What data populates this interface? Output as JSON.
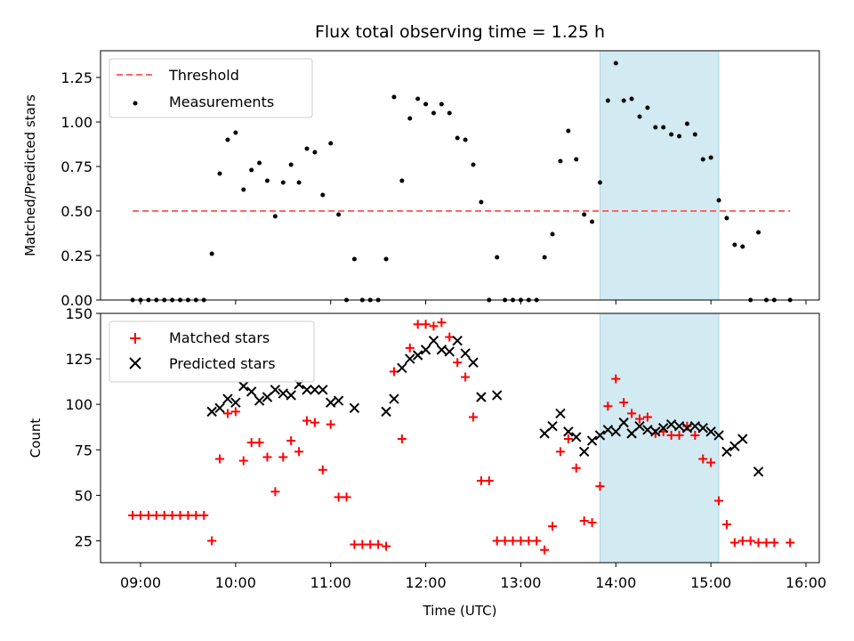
{
  "chart_data": [
    {
      "type": "scatter",
      "title": "Flux total observing time = 1.25 h",
      "xlabel": "",
      "ylabel": "Matched/Predicted stars",
      "ylim": [
        0,
        1.4
      ],
      "yticks": [
        "0.00",
        "0.25",
        "0.50",
        "0.75",
        "1.00",
        "1.25"
      ],
      "shaded_span": {
        "start": "13:50",
        "end": "15:05",
        "color": "#add8e6"
      },
      "threshold": {
        "name": "Threshold",
        "value": 0.5,
        "x_start": "08:55",
        "x_end": "15:50",
        "color": "#ff6666"
      },
      "legend": {
        "position": "top-left",
        "entries": [
          "Threshold",
          "Measurements"
        ]
      },
      "series": [
        {
          "name": "Measurements",
          "marker": "dot",
          "color": "#000000",
          "points": [
            [
              "08:55",
              0
            ],
            [
              "09:00",
              0
            ],
            [
              "09:05",
              0
            ],
            [
              "09:10",
              0
            ],
            [
              "09:15",
              0
            ],
            [
              "09:20",
              0
            ],
            [
              "09:25",
              0
            ],
            [
              "09:30",
              0
            ],
            [
              "09:35",
              0
            ],
            [
              "09:40",
              0
            ],
            [
              "09:45",
              0.26
            ],
            [
              "09:50",
              0.71
            ],
            [
              "09:55",
              0.9
            ],
            [
              "10:00",
              0.94
            ],
            [
              "10:05",
              0.62
            ],
            [
              "10:10",
              0.73
            ],
            [
              "10:15",
              0.77
            ],
            [
              "10:20",
              0.67
            ],
            [
              "10:25",
              0.47
            ],
            [
              "10:30",
              0.66
            ],
            [
              "10:35",
              0.76
            ],
            [
              "10:40",
              0.66
            ],
            [
              "10:45",
              0.85
            ],
            [
              "10:50",
              0.83
            ],
            [
              "10:55",
              0.59
            ],
            [
              "11:00",
              0.88
            ],
            [
              "11:05",
              0.48
            ],
            [
              "11:10",
              0
            ],
            [
              "11:15",
              0.23
            ],
            [
              "11:20",
              0
            ],
            [
              "11:25",
              0
            ],
            [
              "11:30",
              0
            ],
            [
              "11:35",
              0.23
            ],
            [
              "11:40",
              1.14
            ],
            [
              "11:45",
              0.67
            ],
            [
              "11:50",
              1.02
            ],
            [
              "11:55",
              1.13
            ],
            [
              "12:00",
              1.1
            ],
            [
              "12:05",
              1.05
            ],
            [
              "12:10",
              1.1
            ],
            [
              "12:15",
              1.05
            ],
            [
              "12:20",
              0.91
            ],
            [
              "12:25",
              0.9
            ],
            [
              "12:30",
              0.76
            ],
            [
              "12:35",
              0.55
            ],
            [
              "12:40",
              0
            ],
            [
              "12:45",
              0.24
            ],
            [
              "12:50",
              0
            ],
            [
              "12:55",
              0
            ],
            [
              "13:00",
              0
            ],
            [
              "13:05",
              0
            ],
            [
              "13:10",
              0
            ],
            [
              "13:15",
              0.24
            ],
            [
              "13:20",
              0.37
            ],
            [
              "13:25",
              0.78
            ],
            [
              "13:30",
              0.95
            ],
            [
              "13:35",
              0.79
            ],
            [
              "13:40",
              0.48
            ],
            [
              "13:45",
              0.44
            ],
            [
              "13:50",
              0.66
            ],
            [
              "13:55",
              1.12
            ],
            [
              "14:00",
              1.33
            ],
            [
              "14:05",
              1.12
            ],
            [
              "14:10",
              1.13
            ],
            [
              "14:15",
              1.03
            ],
            [
              "14:20",
              1.08
            ],
            [
              "14:25",
              0.97
            ],
            [
              "14:30",
              0.97
            ],
            [
              "14:35",
              0.93
            ],
            [
              "14:40",
              0.92
            ],
            [
              "14:45",
              0.99
            ],
            [
              "14:50",
              0.93
            ],
            [
              "14:55",
              0.79
            ],
            [
              "15:00",
              0.8
            ],
            [
              "15:05",
              0.56
            ],
            [
              "15:10",
              0.46
            ],
            [
              "15:15",
              0.31
            ],
            [
              "15:20",
              0.3
            ],
            [
              "15:25",
              0
            ],
            [
              "15:30",
              0.38
            ],
            [
              "15:35",
              0
            ],
            [
              "15:40",
              0
            ],
            [
              "15:50",
              0
            ]
          ]
        }
      ]
    },
    {
      "type": "scatter",
      "title": "",
      "xlabel": "Time (UTC)",
      "ylabel": "Count",
      "ylim": [
        13,
        150
      ],
      "yticks": [
        "25",
        "50",
        "75",
        "100",
        "125",
        "150"
      ],
      "xticks": [
        "09:00",
        "10:00",
        "11:00",
        "12:00",
        "13:00",
        "14:00",
        "15:00",
        "16:00"
      ],
      "shaded_span": {
        "start": "13:50",
        "end": "15:05",
        "color": "#add8e6"
      },
      "legend": {
        "position": "top-left",
        "entries": [
          "Matched stars",
          "Predicted stars"
        ]
      },
      "series": [
        {
          "name": "Matched stars",
          "marker": "plus",
          "color": "#ff0000",
          "points": [
            [
              "08:55",
              39
            ],
            [
              "09:00",
              39
            ],
            [
              "09:05",
              39
            ],
            [
              "09:10",
              39
            ],
            [
              "09:15",
              39
            ],
            [
              "09:20",
              39
            ],
            [
              "09:25",
              39
            ],
            [
              "09:30",
              39
            ],
            [
              "09:35",
              39
            ],
            [
              "09:40",
              39
            ],
            [
              "09:45",
              25
            ],
            [
              "09:50",
              70
            ],
            [
              "09:55",
              95
            ],
            [
              "10:00",
              96
            ],
            [
              "10:05",
              69
            ],
            [
              "10:10",
              79
            ],
            [
              "10:15",
              79
            ],
            [
              "10:20",
              71
            ],
            [
              "10:25",
              52
            ],
            [
              "10:30",
              71
            ],
            [
              "10:35",
              80
            ],
            [
              "10:40",
              74
            ],
            [
              "10:45",
              91
            ],
            [
              "10:50",
              90
            ],
            [
              "10:55",
              64
            ],
            [
              "11:00",
              89
            ],
            [
              "11:05",
              49
            ],
            [
              "11:10",
              49
            ],
            [
              "11:15",
              23
            ],
            [
              "11:20",
              23
            ],
            [
              "11:25",
              23
            ],
            [
              "11:30",
              23
            ],
            [
              "11:35",
              22
            ],
            [
              "11:40",
              118
            ],
            [
              "11:45",
              81
            ],
            [
              "11:50",
              131
            ],
            [
              "11:55",
              144
            ],
            [
              "12:00",
              144
            ],
            [
              "12:05",
              143
            ],
            [
              "12:10",
              145
            ],
            [
              "12:15",
              137
            ],
            [
              "12:20",
              123
            ],
            [
              "12:25",
              115
            ],
            [
              "12:30",
              93
            ],
            [
              "12:35",
              58
            ],
            [
              "12:40",
              58
            ],
            [
              "12:45",
              25
            ],
            [
              "12:50",
              25
            ],
            [
              "12:55",
              25
            ],
            [
              "13:00",
              25
            ],
            [
              "13:05",
              25
            ],
            [
              "13:10",
              25
            ],
            [
              "13:15",
              20
            ],
            [
              "13:20",
              33
            ],
            [
              "13:25",
              74
            ],
            [
              "13:30",
              81
            ],
            [
              "13:35",
              65
            ],
            [
              "13:40",
              36
            ],
            [
              "13:45",
              35
            ],
            [
              "13:50",
              55
            ],
            [
              "13:55",
              99
            ],
            [
              "14:00",
              114
            ],
            [
              "14:05",
              101
            ],
            [
              "14:10",
              95
            ],
            [
              "14:15",
              92
            ],
            [
              "14:20",
              93
            ],
            [
              "14:25",
              84
            ],
            [
              "14:30",
              85
            ],
            [
              "14:35",
              83
            ],
            [
              "14:40",
              83
            ],
            [
              "14:45",
              88
            ],
            [
              "14:50",
              83
            ],
            [
              "14:55",
              70
            ],
            [
              "15:00",
              68
            ],
            [
              "15:05",
              47
            ],
            [
              "15:10",
              34
            ],
            [
              "15:15",
              24
            ],
            [
              "15:20",
              25
            ],
            [
              "15:25",
              25
            ],
            [
              "15:30",
              24
            ],
            [
              "15:35",
              24
            ],
            [
              "15:40",
              24
            ],
            [
              "15:50",
              24
            ]
          ]
        },
        {
          "name": "Predicted stars",
          "marker": "x",
          "color": "#000000",
          "points": [
            [
              "09:45",
              96
            ],
            [
              "09:50",
              98
            ],
            [
              "09:55",
              103
            ],
            [
              "10:00",
              101
            ],
            [
              "10:05",
              110
            ],
            [
              "10:10",
              107
            ],
            [
              "10:15",
              102
            ],
            [
              "10:20",
              104
            ],
            [
              "10:25",
              108
            ],
            [
              "10:30",
              106
            ],
            [
              "10:35",
              105
            ],
            [
              "10:40",
              111
            ],
            [
              "10:45",
              108
            ],
            [
              "10:50",
              108
            ],
            [
              "10:55",
              108
            ],
            [
              "11:00",
              101
            ],
            [
              "11:05",
              102
            ],
            [
              "11:15",
              98
            ],
            [
              "11:35",
              96
            ],
            [
              "11:40",
              103
            ],
            [
              "11:45",
              120
            ],
            [
              "11:50",
              125
            ],
            [
              "11:55",
              127
            ],
            [
              "12:00",
              130
            ],
            [
              "12:05",
              135
            ],
            [
              "12:10",
              130
            ],
            [
              "12:15",
              129
            ],
            [
              "12:20",
              135
            ],
            [
              "12:25",
              128
            ],
            [
              "12:30",
              123
            ],
            [
              "12:35",
              104
            ],
            [
              "12:45",
              105
            ],
            [
              "13:15",
              84
            ],
            [
              "13:20",
              88
            ],
            [
              "13:25",
              95
            ],
            [
              "13:30",
              85
            ],
            [
              "13:35",
              82
            ],
            [
              "13:40",
              74
            ],
            [
              "13:45",
              80
            ],
            [
              "13:50",
              83
            ],
            [
              "13:55",
              86
            ],
            [
              "14:00",
              85
            ],
            [
              "14:05",
              90
            ],
            [
              "14:10",
              84
            ],
            [
              "14:15",
              88
            ],
            [
              "14:20",
              86
            ],
            [
              "14:25",
              85
            ],
            [
              "14:30",
              87
            ],
            [
              "14:35",
              89
            ],
            [
              "14:40",
              88
            ],
            [
              "14:45",
              87
            ],
            [
              "14:50",
              88
            ],
            [
              "14:55",
              87
            ],
            [
              "15:00",
              85
            ],
            [
              "15:05",
              83
            ],
            [
              "15:10",
              74
            ],
            [
              "15:15",
              77
            ],
            [
              "15:20",
              81
            ],
            [
              "15:30",
              63
            ]
          ]
        }
      ]
    }
  ]
}
